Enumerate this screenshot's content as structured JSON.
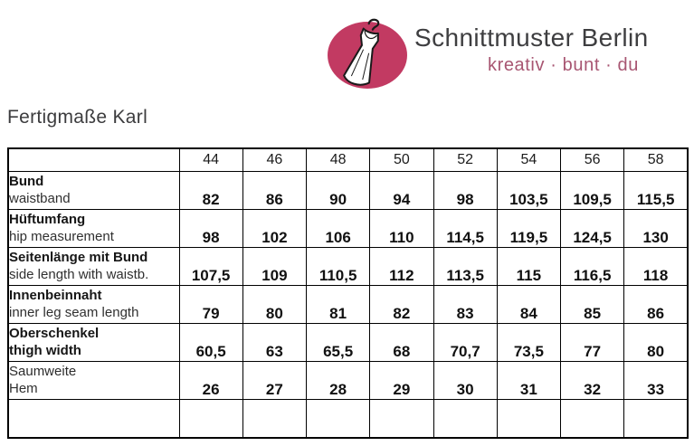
{
  "brand": {
    "name": "Schnittmuster Berlin",
    "tagline": "kreativ · bunt · du",
    "logo_icon": "dress-on-hanger-icon",
    "colors": {
      "logo_circle": "#c23a62",
      "brand_text": "#3e3e40",
      "tagline_text": "#a85672"
    }
  },
  "page": {
    "title": "Fertigmaße Karl"
  },
  "table": {
    "corner_label": "",
    "sizes": [
      "44",
      "46",
      "48",
      "50",
      "52",
      "54",
      "56",
      "58"
    ],
    "rows": [
      {
        "label_de": "Bund",
        "label_en": "waistband",
        "de_bold": true,
        "en_bold": false,
        "values": [
          "82",
          "86",
          "90",
          "94",
          "98",
          "103,5",
          "109,5",
          "115,5"
        ]
      },
      {
        "label_de": "Hüftumfang",
        "label_en": "hip measurement",
        "de_bold": true,
        "en_bold": false,
        "values": [
          "98",
          "102",
          "106",
          "110",
          "114,5",
          "119,5",
          "124,5",
          "130"
        ]
      },
      {
        "label_de": "Seitenlänge mit Bund",
        "label_en": "side length with waistb.",
        "de_bold": true,
        "en_bold": false,
        "values": [
          "107,5",
          "109",
          "110,5",
          "112",
          "113,5",
          "115",
          "116,5",
          "118"
        ]
      },
      {
        "label_de": "Innenbeinnaht",
        "label_en": "inner leg seam length",
        "de_bold": true,
        "en_bold": false,
        "values": [
          "79",
          "80",
          "81",
          "82",
          "83",
          "84",
          "85",
          "86"
        ]
      },
      {
        "label_de": "Oberschenkel",
        "label_en": "thigh width",
        "de_bold": true,
        "en_bold": true,
        "values": [
          "60,5",
          "63",
          "65,5",
          "68",
          "70,7",
          "73,5",
          "77",
          "80"
        ]
      },
      {
        "label_de": "Saumweite",
        "label_en": "Hem",
        "de_bold": false,
        "en_bold": false,
        "values": [
          "26",
          "27",
          "28",
          "29",
          "30",
          "31",
          "32",
          "33"
        ]
      },
      {
        "label_de": "",
        "label_en": "",
        "de_bold": false,
        "en_bold": false,
        "values": [
          "",
          "",
          "",
          "",
          "",
          "",
          "",
          ""
        ]
      }
    ]
  }
}
